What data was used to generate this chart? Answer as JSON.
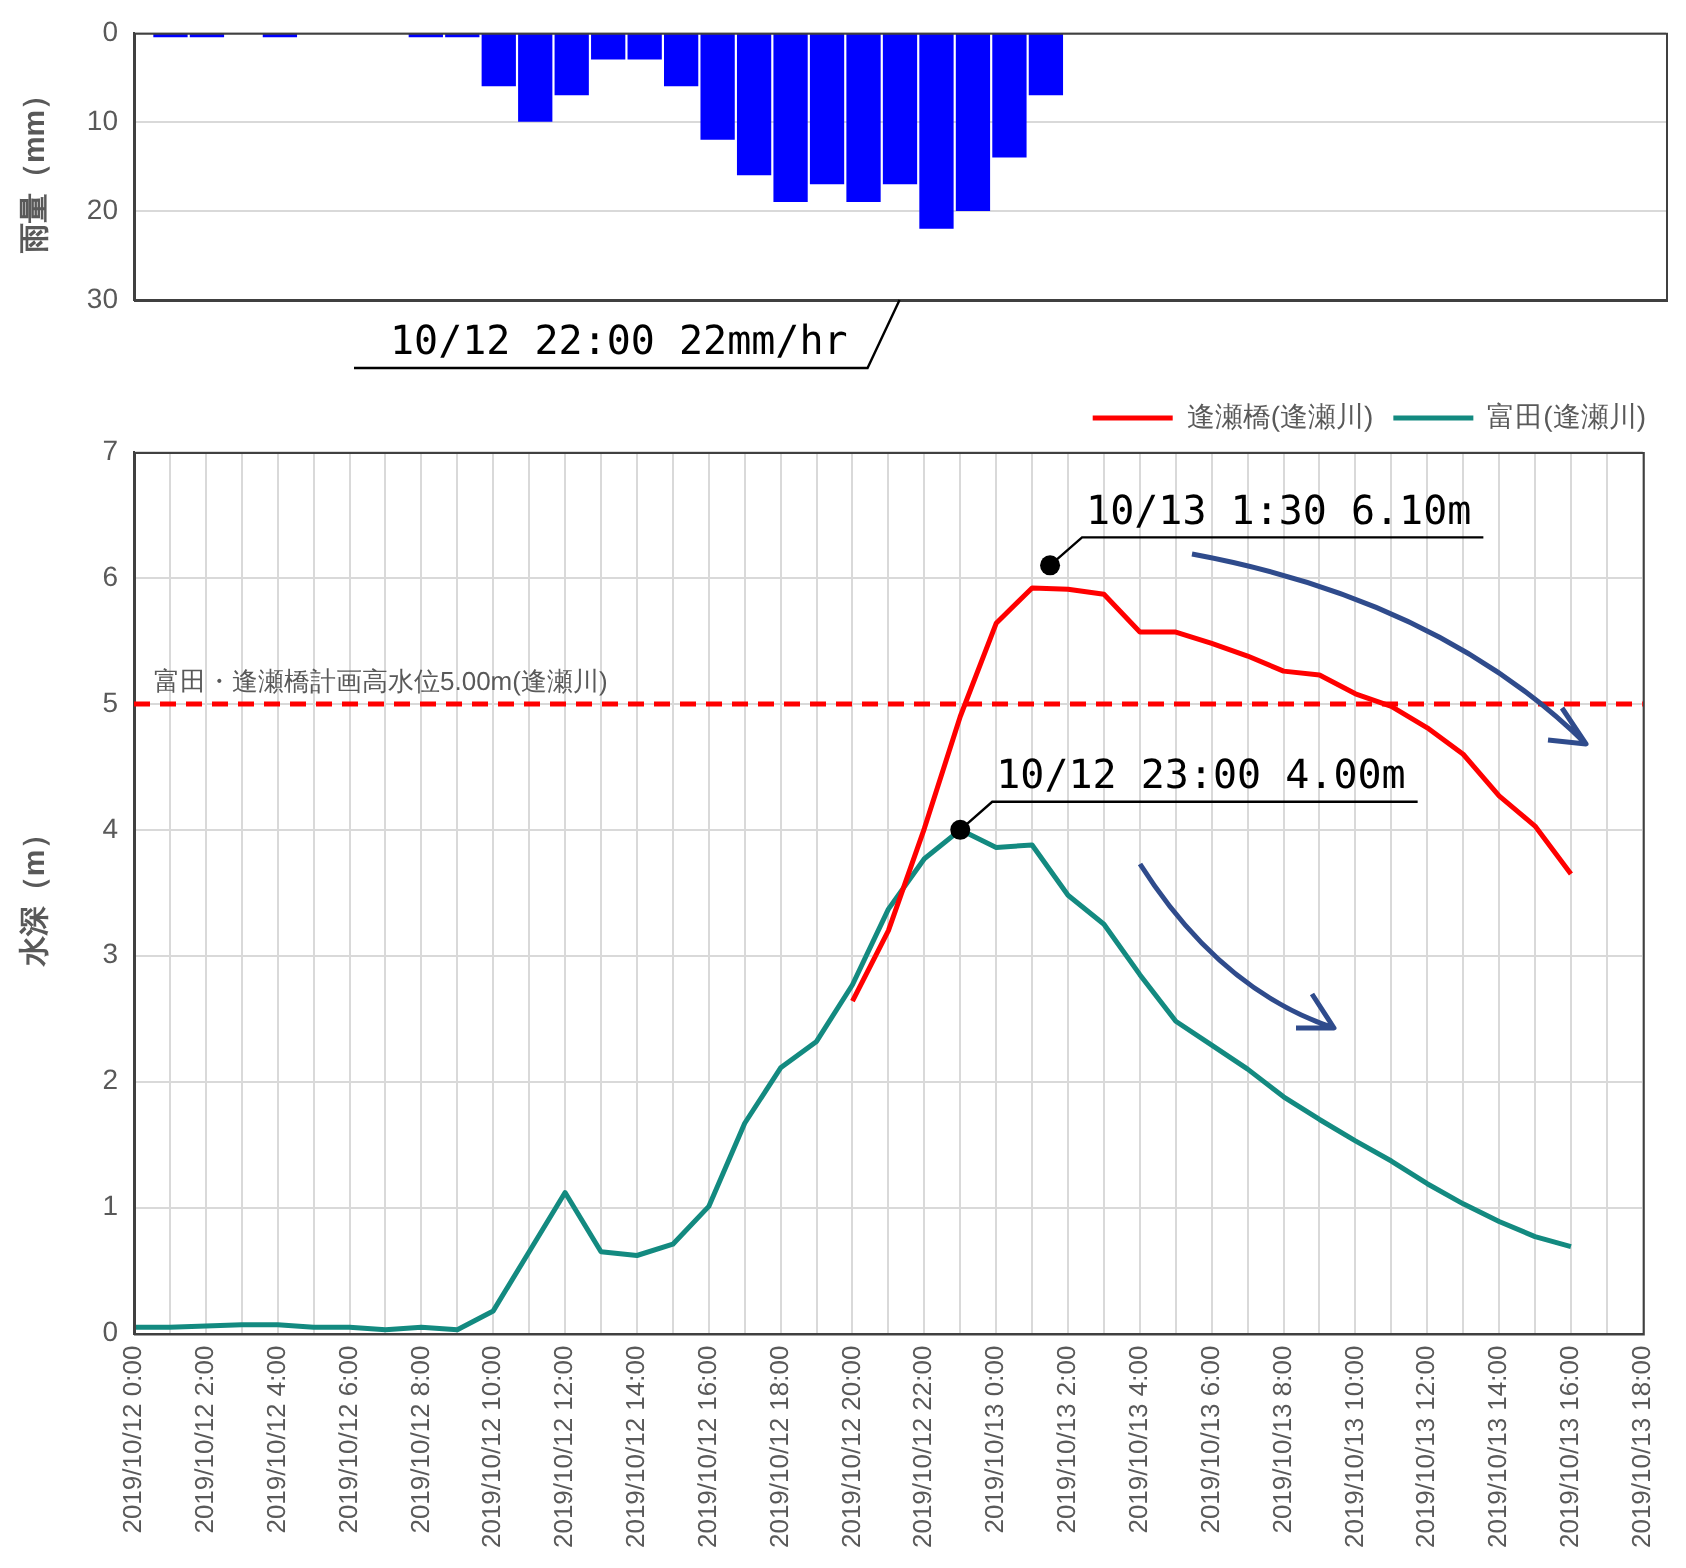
{
  "chart_data": [
    {
      "type": "bar",
      "ylabel": "雨量（mm）",
      "categories": [
        null,
        null,
        null,
        null,
        null,
        null,
        null,
        null,
        null,
        null,
        null,
        null,
        null,
        null,
        null,
        null,
        null,
        null,
        null,
        null,
        null,
        null,
        null,
        null,
        null,
        null,
        null,
        null,
        null,
        null,
        null,
        null,
        null,
        null,
        null,
        null,
        null,
        null,
        null,
        null,
        null,
        null,
        null
      ],
      "values": [
        null,
        0.5,
        0.5,
        0,
        0.5,
        0,
        0,
        0,
        0.5,
        0.5,
        6,
        10,
        7,
        3,
        3,
        6,
        12,
        16,
        19,
        17,
        19,
        17,
        22,
        20,
        14,
        7,
        null,
        null,
        null,
        null,
        null,
        null,
        null,
        null,
        null,
        null,
        null,
        null,
        null,
        null,
        null,
        null,
        null
      ],
      "color": "#0000ff",
      "ylim": [
        30,
        0
      ],
      "yticks": [
        0,
        10,
        20,
        30
      ],
      "grid": "y",
      "tick_labels": "y",
      "annotations": [
        "10/12 22:00 22mm/hr"
      ]
    },
    {
      "type": "line",
      "ylabel": "水深（m）",
      "series": [
        {
          "name": "逢瀬橋(逢瀬川)",
          "color": "#ff0000",
          "x": [
            "2019-10-12T20:00",
            "2019-10-12T21:00",
            "2019-10-12T22:00",
            "2019-10-12T23:00",
            "2019-10-13T00:00",
            "2019-10-13T01:00",
            "2019-10-13T02:00",
            "2019-10-13T03:00",
            "2019-10-13T04:00",
            "2019-10-13T05:00",
            "2019-10-13T06:00",
            "2019-10-13T07:00",
            "2019-10-13T08:00",
            "2019-10-13T09:00",
            "2019-10-13T10:00",
            "2019-10-13T11:00",
            "2019-10-13T12:00",
            "2019-10-13T13:00",
            "2019-10-13T14:00",
            "2019-10-13T15:00",
            "2019-10-13T16:00"
          ],
          "values": [
            2.64,
            3.2,
            4.01,
            4.9,
            5.64,
            5.92,
            5.91,
            5.87,
            5.57,
            5.57,
            5.48,
            5.38,
            5.26,
            5.23,
            5.08,
            4.98,
            4.81,
            4.6,
            4.27,
            4.03,
            3.65
          ]
        },
        {
          "name": "富田(逢瀬川)",
          "color": "#138a80",
          "x": [
            "2019-10-12T00:00",
            "2019-10-12T01:00",
            "2019-10-12T02:00",
            "2019-10-12T03:00",
            "2019-10-12T04:00",
            "2019-10-12T05:00",
            "2019-10-12T06:00",
            "2019-10-12T07:00",
            "2019-10-12T08:00",
            "2019-10-12T09:00",
            "2019-10-12T10:00",
            "2019-10-12T11:00",
            "2019-10-12T12:00",
            "2019-10-12T13:00",
            "2019-10-12T14:00",
            "2019-10-12T15:00",
            "2019-10-12T16:00",
            "2019-10-12T17:00",
            "2019-10-12T18:00",
            "2019-10-12T19:00",
            "2019-10-12T20:00",
            "2019-10-12T21:00",
            "2019-10-12T22:00",
            "2019-10-12T23:00",
            "2019-10-13T00:00",
            "2019-10-13T01:00",
            "2019-10-13T02:00",
            "2019-10-13T03:00",
            "2019-10-13T04:00",
            "2019-10-13T05:00",
            "2019-10-13T06:00",
            "2019-10-13T07:00",
            "2019-10-13T08:00",
            "2019-10-13T09:00",
            "2019-10-13T10:00",
            "2019-10-13T11:00",
            "2019-10-13T12:00",
            "2019-10-13T13:00",
            "2019-10-13T14:00",
            "2019-10-13T15:00",
            "2019-10-13T16:00"
          ],
          "values": [
            0.05,
            0.05,
            0.06,
            0.07,
            0.07,
            0.05,
            0.05,
            0.03,
            0.05,
            0.03,
            0.18,
            0.65,
            1.12,
            0.65,
            0.62,
            0.71,
            1.01,
            1.67,
            2.11,
            2.32,
            2.77,
            3.37,
            3.77,
            4.0,
            3.86,
            3.88,
            3.48,
            3.25,
            2.85,
            2.48,
            2.29,
            2.1,
            1.88,
            1.7,
            1.53,
            1.37,
            1.19,
            1.03,
            0.89,
            0.77,
            0.69
          ]
        }
      ],
      "xlim": [
        "2019-10-12T00:00",
        "2019-10-13T18:00"
      ],
      "xticks": [
        {
          "value": "2019-10-12T00:00",
          "label": "2019/10/12 0:00"
        },
        {
          "value": "2019-10-12T01:00",
          "label": null
        },
        {
          "value": "2019-10-12T02:00",
          "label": "2019/10/12 2:00"
        },
        {
          "value": "2019-10-12T03:00",
          "label": null
        },
        {
          "value": "2019-10-12T04:00",
          "label": "2019/10/12 4:00"
        },
        {
          "value": "2019-10-12T05:00",
          "label": null
        },
        {
          "value": "2019-10-12T06:00",
          "label": "2019/10/12 6:00"
        },
        {
          "value": "2019-10-12T07:00",
          "label": null
        },
        {
          "value": "2019-10-12T08:00",
          "label": "2019/10/12 8:00"
        },
        {
          "value": "2019-10-12T09:00",
          "label": null
        },
        {
          "value": "2019-10-12T10:00",
          "label": "2019/10/12 10:00"
        },
        {
          "value": "2019-10-12T11:00",
          "label": null
        },
        {
          "value": "2019-10-12T12:00",
          "label": "2019/10/12 12:00"
        },
        {
          "value": "2019-10-12T13:00",
          "label": null
        },
        {
          "value": "2019-10-12T14:00",
          "label": "2019/10/12 14:00"
        },
        {
          "value": "2019-10-12T15:00",
          "label": null
        },
        {
          "value": "2019-10-12T16:00",
          "label": "2019/10/12 16:00"
        },
        {
          "value": "2019-10-12T17:00",
          "label": null
        },
        {
          "value": "2019-10-12T18:00",
          "label": "2019/10/12 18:00"
        },
        {
          "value": "2019-10-12T19:00",
          "label": null
        },
        {
          "value": "2019-10-12T20:00",
          "label": "2019/10/12 20:00"
        },
        {
          "value": "2019-10-12T21:00",
          "label": null
        },
        {
          "value": "2019-10-12T22:00",
          "label": "2019/10/12 22:00"
        },
        {
          "value": "2019-10-12T23:00",
          "label": null
        },
        {
          "value": "2019-10-13T00:00",
          "label": "2019/10/13 0:00"
        },
        {
          "value": "2019-10-13T01:00",
          "label": null
        },
        {
          "value": "2019-10-13T02:00",
          "label": "2019/10/13 2:00"
        },
        {
          "value": "2019-10-13T03:00",
          "label": null
        },
        {
          "value": "2019-10-13T04:00",
          "label": "2019/10/13 4:00"
        },
        {
          "value": "2019-10-13T05:00",
          "label": null
        },
        {
          "value": "2019-10-13T06:00",
          "label": "2019/10/13 6:00"
        },
        {
          "value": "2019-10-13T07:00",
          "label": null
        },
        {
          "value": "2019-10-13T08:00",
          "label": "2019/10/13 8:00"
        },
        {
          "value": "2019-10-13T09:00",
          "label": null
        },
        {
          "value": "2019-10-13T10:00",
          "label": "2019/10/13 10:00"
        },
        {
          "value": "2019-10-13T11:00",
          "label": null
        },
        {
          "value": "2019-10-13T12:00",
          "label": "2019/10/13 12:00"
        },
        {
          "value": "2019-10-13T13:00",
          "label": null
        },
        {
          "value": "2019-10-13T14:00",
          "label": "2019/10/13 14:00"
        },
        {
          "value": "2019-10-13T15:00",
          "label": null
        },
        {
          "value": "2019-10-13T16:00",
          "label": "2019/10/13 16:00"
        },
        {
          "value": "2019-10-13T17:00",
          "label": null
        },
        {
          "value": "2019-10-13T18:00",
          "label": "2019/10/13 18:00"
        }
      ],
      "ylim": [
        0,
        7
      ],
      "yticks": [
        0,
        1,
        2,
        3,
        4,
        5,
        6,
        7
      ],
      "grid": true,
      "legend": "top right",
      "marker": "none",
      "ref_lines": [
        {
          "axis": "y",
          "value": 5,
          "label": "富田・逢瀬橋計画高水位5.00m(逢瀬川)",
          "color": "#ff0000",
          "line_style": "dashed"
        }
      ],
      "annotations": [
        {
          "text": "10/13 1:30 6.10m",
          "x": "2019-10-13T01:30",
          "y": 6.1
        },
        {
          "text": "10/12 23:00 4.00m",
          "x": "2019-10-12T23:00",
          "y": 4.0
        }
      ]
    }
  ]
}
